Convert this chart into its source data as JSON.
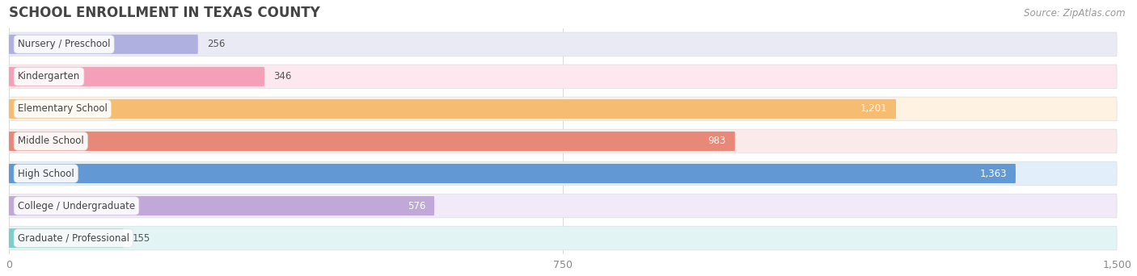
{
  "title": "SCHOOL ENROLLMENT IN TEXAS COUNTY",
  "source": "Source: ZipAtlas.com",
  "categories": [
    "Nursery / Preschool",
    "Kindergarten",
    "Elementary School",
    "Middle School",
    "High School",
    "College / Undergraduate",
    "Graduate / Professional"
  ],
  "values": [
    256,
    346,
    1201,
    983,
    1363,
    576,
    155
  ],
  "bar_colors": [
    "#b0b0e0",
    "#f4a0b8",
    "#f5bc72",
    "#e88878",
    "#6299d4",
    "#c0a8d8",
    "#7ecec8"
  ],
  "bar_bg_colors": [
    "#eaeaf5",
    "#fde8ef",
    "#fef2e2",
    "#faeaea",
    "#e2eef8",
    "#f2eaf8",
    "#e2f5f4"
  ],
  "xlim_max": 1500,
  "xticks": [
    0,
    750,
    1500
  ],
  "label_inside_threshold": 500,
  "title_fontsize": 12,
  "source_fontsize": 8.5,
  "bar_label_fontsize": 8.5,
  "category_fontsize": 8.5,
  "fig_bg": "#ffffff",
  "ax_bg": "#ffffff"
}
